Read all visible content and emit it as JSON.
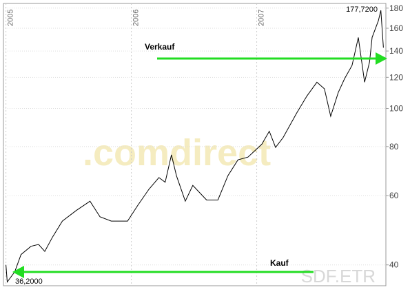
{
  "chart_data": {
    "type": "line",
    "log_scale": true,
    "grid": true,
    "x": [
      2005.0,
      2005.01,
      2005.07,
      2005.12,
      2005.2,
      2005.26,
      2005.31,
      2005.37,
      2005.45,
      2005.56,
      2005.67,
      2005.75,
      2005.84,
      2005.97,
      2006.05,
      2006.14,
      2006.22,
      2006.27,
      2006.32,
      2006.36,
      2006.43,
      2006.49,
      2006.6,
      2006.69,
      2006.77,
      2006.85,
      2006.93,
      2007.04,
      2007.1,
      2007.15,
      2007.21,
      2007.32,
      2007.4,
      2007.48,
      2007.54,
      2007.59,
      2007.65,
      2007.7,
      2007.76,
      2007.81,
      2007.86,
      2007.9,
      2007.92,
      2007.97,
      2007.99,
      2008.01
    ],
    "series": [
      {
        "color": "#000000",
        "values": [
          40,
          36.2,
          38.4,
          42.5,
          44.6,
          45.1,
          43.3,
          47.0,
          51.7,
          55.0,
          58.1,
          53.0,
          51.7,
          51.7,
          56.6,
          62.3,
          66.7,
          64.9,
          76.2,
          67.4,
          58.1,
          63.7,
          58.5,
          58.5,
          67.4,
          74.0,
          75.2,
          81.1,
          87.5,
          79.6,
          84.3,
          97.5,
          107.6,
          116.6,
          112.2,
          95.5,
          109.8,
          119.0,
          128.7,
          151.6,
          116.6,
          131.3,
          151.6,
          167.2,
          177.72,
          142.8
        ]
      }
    ],
    "xlim": [
      2004.98,
      2008.03
    ],
    "xticks": [
      2005,
      2006,
      2007
    ],
    "ylim": [
      35.4,
      185
    ],
    "yticks": [
      40,
      60,
      80,
      100,
      120,
      140,
      160,
      180
    ],
    "annotations": {
      "high": "177,7200",
      "low": "36,2000",
      "sell": "Verkauf",
      "buy": "Kauf",
      "watermark": ".comdirect",
      "symbol": "SDF.ETR"
    }
  }
}
